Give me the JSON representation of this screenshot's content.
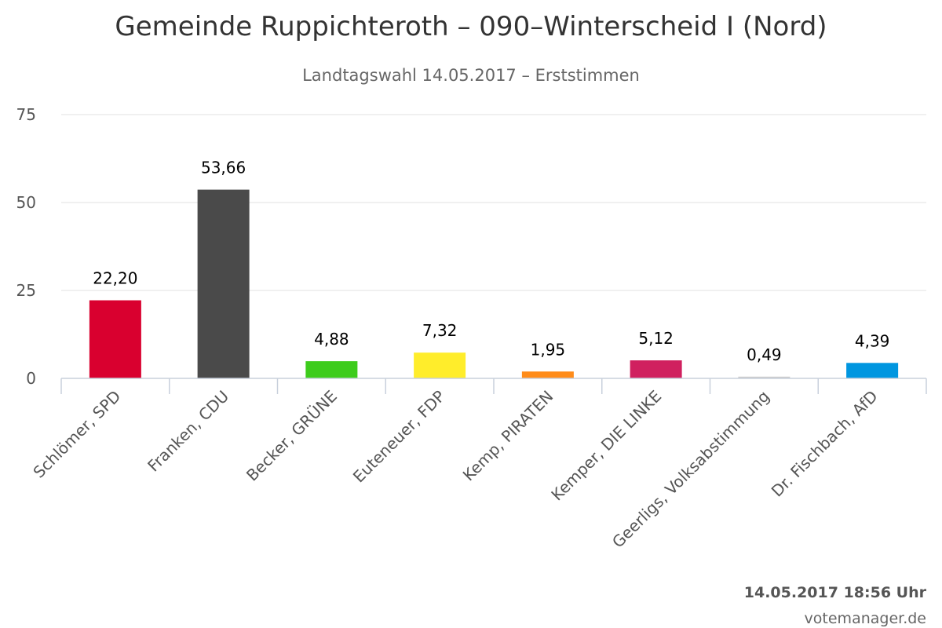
{
  "chart_data": {
    "type": "bar",
    "title": "Gemeinde Ruppichteroth – 090–Winterscheid I (Nord)",
    "subtitle": "Landtagswahl 14.05.2017 – Erststimmen",
    "categories": [
      "Schlömer, SPD",
      "Franken, CDU",
      "Becker, GRÜNE",
      "Euteneuer, FDP",
      "Kemp, PIRATEN",
      "Kemper, DIE LINKE",
      "Geerligs, Volksabstimmung",
      "Dr. Fischbach, AfD"
    ],
    "values": [
      22.2,
      53.66,
      4.88,
      7.32,
      1.95,
      5.12,
      0.49,
      4.39
    ],
    "data_labels": [
      "22,20",
      "53,66",
      "4,88",
      "7,32",
      "1,95",
      "5,12",
      "0,49",
      "4,39"
    ],
    "colors": [
      "#d9002f",
      "#4a4a4a",
      "#3dcc1c",
      "#ffed2b",
      "#ff8c1a",
      "#d0205f",
      "#cccccc",
      "#0096e0"
    ],
    "yticks": [
      0,
      25,
      50,
      75
    ],
    "ylim": [
      0,
      75
    ],
    "grid": true,
    "legend": "none"
  },
  "footer": {
    "timestamp": "14.05.2017 18:56 Uhr",
    "credit": "votemanager.de"
  }
}
